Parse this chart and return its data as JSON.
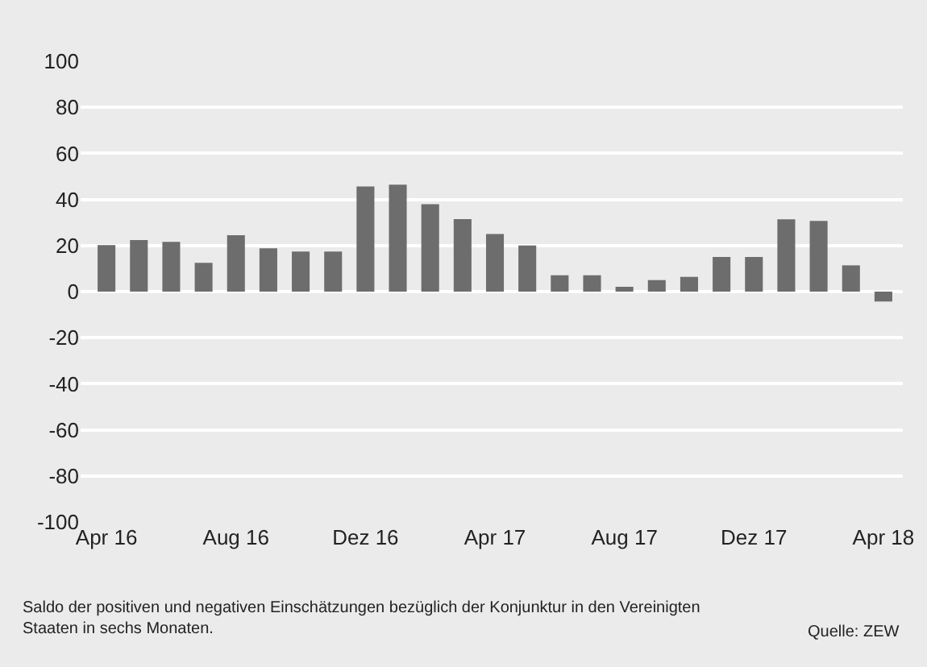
{
  "chart_data": {
    "type": "bar",
    "categories": [
      "Apr 16",
      null,
      null,
      null,
      "Aug 16",
      null,
      null,
      null,
      "Dez 16",
      null,
      null,
      null,
      "Apr 17",
      null,
      null,
      null,
      "Aug 17",
      null,
      null,
      null,
      "Dez 17",
      null,
      null,
      null,
      "Apr 18"
    ],
    "values": [
      20.2,
      22.4,
      21.6,
      12.5,
      24.5,
      18.8,
      17.4,
      17.4,
      45.6,
      46.4,
      37.9,
      31.5,
      25,
      20,
      7.1,
      7.1,
      2.1,
      5,
      6.4,
      15,
      15,
      31.4,
      30.7,
      11.4,
      -4.3
    ],
    "color": "#6d6d6d",
    "ylim": [
      -100,
      100
    ],
    "yticks": [
      -100,
      -80,
      -60,
      -40,
      -20,
      0,
      20,
      40,
      60,
      80,
      100
    ],
    "grid": "y",
    "annotations": [
      "Saldo der positiven und negativen Einschätzungen bezüglich der Konjunktur in den Vereinigten Staaten in sechs Monaten.",
      "Quelle: ZEW"
    ]
  }
}
